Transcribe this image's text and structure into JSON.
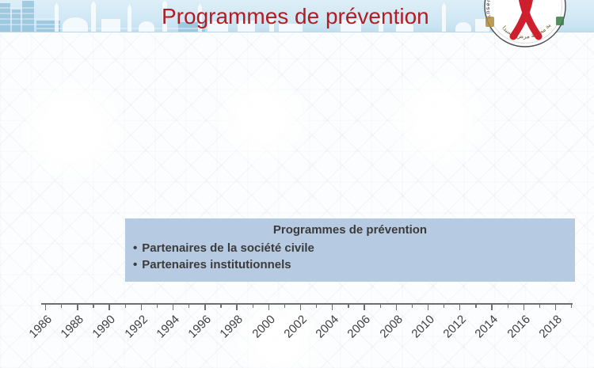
{
  "header": {
    "title": "Programmes de prévention",
    "title_color": "#ae1e24",
    "band_color": "#cfe7f4",
    "logo": {
      "arc_text": "Ensemble nous vaincrons le SIDA",
      "arabic_text": "جمعية محاربة مرض السيدا",
      "ribbon_color": "#cf1f2e"
    }
  },
  "content_box": {
    "title": "Programmes de prévention",
    "bullet_char": "•",
    "bullets": [
      "Partenaires de la société civile",
      "Partenaires institutionnels"
    ],
    "bg_color": "#b6cbe2",
    "text_color": "#3b3b3b"
  },
  "timeline": {
    "axis_start_year": 1986,
    "axis_end_year": 2019,
    "tick_interval_years": 1,
    "label_interval_years": 2,
    "labels": [
      "1986",
      "1988",
      "1990",
      "1992",
      "1994",
      "1996",
      "1998",
      "2000",
      "2002",
      "2004",
      "2006",
      "2008",
      "2010",
      "2012",
      "2014",
      "2016",
      "2018"
    ],
    "axis_color": "#6e6e6e",
    "label_color": "#3f3f3f"
  }
}
